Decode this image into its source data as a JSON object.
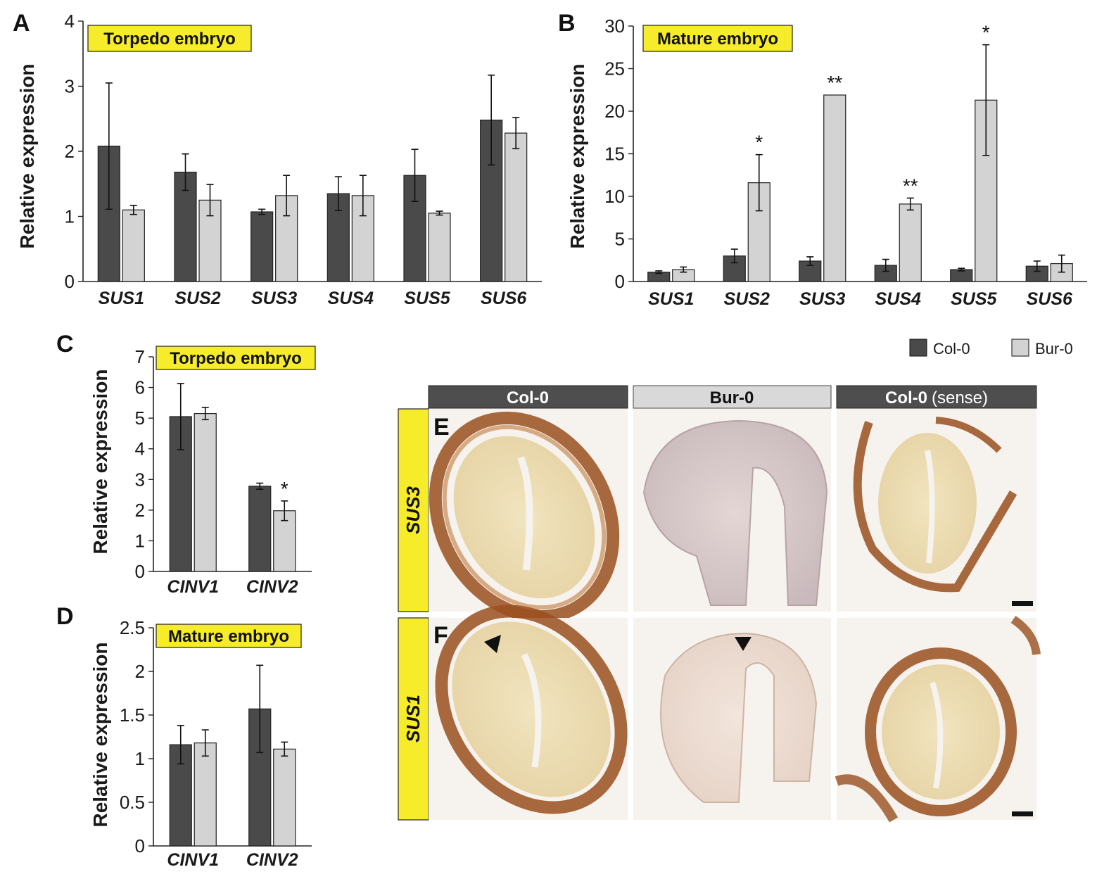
{
  "colors": {
    "col0": "#4a4a4a",
    "bur0": "#d3d3d3",
    "label_box": "#f7ec2a",
    "header_dark": "#4e4e4e",
    "header_light": "#d9d9d9",
    "tissue_outer": "#b0642c",
    "tissue_inner": "#eddcb0",
    "tissue_purple": "#cdbfbf",
    "tissue_bg": "#f6f3ef"
  },
  "legend": {
    "items": [
      {
        "label": "Col-0",
        "color": "#4a4a4a"
      },
      {
        "label": "Bur-0",
        "color": "#d3d3d3"
      }
    ]
  },
  "chart_data": [
    {
      "panel": "A",
      "type": "bar",
      "title": "Torpedo embryo",
      "ylabel": "Relative expression",
      "ylim": [
        0,
        4
      ],
      "yticks": [
        "0",
        "1",
        "2",
        "3",
        "4"
      ],
      "categories": [
        "SUS1",
        "SUS2",
        "SUS3",
        "SUS4",
        "SUS5",
        "SUS6"
      ],
      "series": [
        {
          "name": "Col-0",
          "values": [
            2.08,
            1.68,
            1.07,
            1.35,
            1.63,
            2.48
          ],
          "errors": [
            0.97,
            0.28,
            0.04,
            0.26,
            0.4,
            0.69
          ]
        },
        {
          "name": "Bur-0",
          "values": [
            1.1,
            1.25,
            1.32,
            1.32,
            1.05,
            2.28
          ],
          "errors": [
            0.07,
            0.24,
            0.31,
            0.31,
            0.03,
            0.24
          ]
        }
      ],
      "annotations": []
    },
    {
      "panel": "B",
      "type": "bar",
      "title": "Mature embryo",
      "ylabel": "Relative expression",
      "ylim": [
        0,
        30
      ],
      "yticks": [
        "0",
        "5",
        "10",
        "15",
        "20",
        "25",
        "30"
      ],
      "categories": [
        "SUS1",
        "SUS2",
        "SUS3",
        "SUS4",
        "SUS5",
        "SUS6"
      ],
      "series": [
        {
          "name": "Col-0",
          "values": [
            1.1,
            3.0,
            2.4,
            1.9,
            1.4,
            1.8
          ],
          "errors": [
            0.15,
            0.8,
            0.5,
            0.7,
            0.15,
            0.6
          ]
        },
        {
          "name": "Bur-0",
          "values": [
            1.4,
            11.6,
            21.9,
            9.1,
            21.3,
            2.1
          ],
          "errors": [
            0.3,
            3.3,
            0.0,
            0.7,
            6.5,
            1.0
          ]
        }
      ],
      "annotations": [
        {
          "category": "SUS2",
          "text": "*"
        },
        {
          "category": "SUS3",
          "text": "**"
        },
        {
          "category": "SUS4",
          "text": "**"
        },
        {
          "category": "SUS5",
          "text": "*"
        }
      ]
    },
    {
      "panel": "C",
      "type": "bar",
      "title": "Torpedo embryo",
      "ylabel": "Relative expression",
      "ylim": [
        0,
        7
      ],
      "yticks": [
        "0",
        "1",
        "2",
        "3",
        "4",
        "5",
        "6",
        "7"
      ],
      "categories": [
        "CINV1",
        "CINV2"
      ],
      "series": [
        {
          "name": "Col-0",
          "values": [
            5.05,
            2.78
          ],
          "errors": [
            1.08,
            0.1
          ]
        },
        {
          "name": "Bur-0",
          "values": [
            5.15,
            1.98
          ],
          "errors": [
            0.2,
            0.32
          ]
        }
      ],
      "annotations": [
        {
          "category": "CINV2",
          "text": "*"
        }
      ]
    },
    {
      "panel": "D",
      "type": "bar",
      "title": "Mature embryo",
      "ylabel": "Relative expression",
      "ylim": [
        0,
        2.5
      ],
      "yticks": [
        "0",
        "0.5",
        "1",
        "1.5",
        "2",
        "2.5"
      ],
      "categories": [
        "CINV1",
        "CINV2"
      ],
      "series": [
        {
          "name": "Col-0",
          "values": [
            1.16,
            1.57
          ],
          "errors": [
            0.22,
            0.5
          ]
        },
        {
          "name": "Bur-0",
          "values": [
            1.18,
            1.11
          ],
          "errors": [
            0.15,
            0.08
          ]
        }
      ],
      "annotations": []
    }
  ],
  "micrographs": {
    "column_headers": [
      {
        "label": "Col-0",
        "suffix": ""
      },
      {
        "label": "Bur-0",
        "suffix": ""
      },
      {
        "label": "Col-0",
        "suffix": "(sense)"
      }
    ],
    "rows": [
      {
        "label": "SUS3",
        "panel": "E"
      },
      {
        "label": "SUS1",
        "panel": "F"
      }
    ]
  }
}
